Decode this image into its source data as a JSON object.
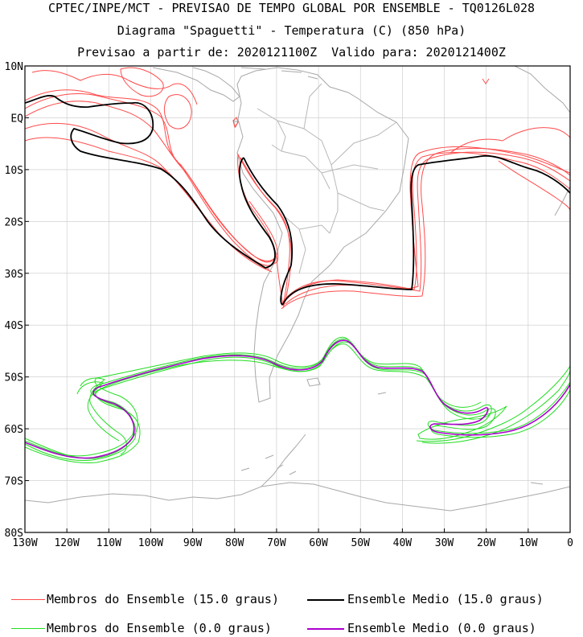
{
  "title": {
    "line1": "CPTEC/INPE/MCT - PREVISAO DE TEMPO GLOBAL POR ENSEMBLE - TQ0126L028",
    "line2": "Diagrama \"Spaguetti\" - Temperatura (C) (850 hPa)",
    "line3": "Previsao a partir de: 2020121100Z  Valido para: 2020121400Z"
  },
  "map": {
    "lon_range": [
      -130,
      0
    ],
    "lat_range": [
      -80,
      10
    ],
    "lat_labels": [
      "10N",
      "EQ",
      "10S",
      "20S",
      "30S",
      "40S",
      "50S",
      "60S",
      "70S",
      "80S"
    ],
    "lon_labels": [
      "130W",
      "120W",
      "110W",
      "100W",
      "90W",
      "80W",
      "70W",
      "60W",
      "50W",
      "40W",
      "30W",
      "20W",
      "10W",
      "0"
    ],
    "grid": true,
    "colors": {
      "members_15": "#ff4a4a",
      "mean_15": "#000000",
      "members_0": "#22dd22",
      "mean_0": "#aa00cc",
      "coast": "#a8a8a8",
      "grid": "#c8c8c8"
    }
  },
  "legend": {
    "members_15": "Membros do Ensemble (15.0 graus)",
    "mean_15": "Ensemble Medio (15.0 graus)",
    "members_0": "Membros do Ensemble (0.0 graus)",
    "mean_0": "Ensemble Medio (0.0 graus)"
  }
}
